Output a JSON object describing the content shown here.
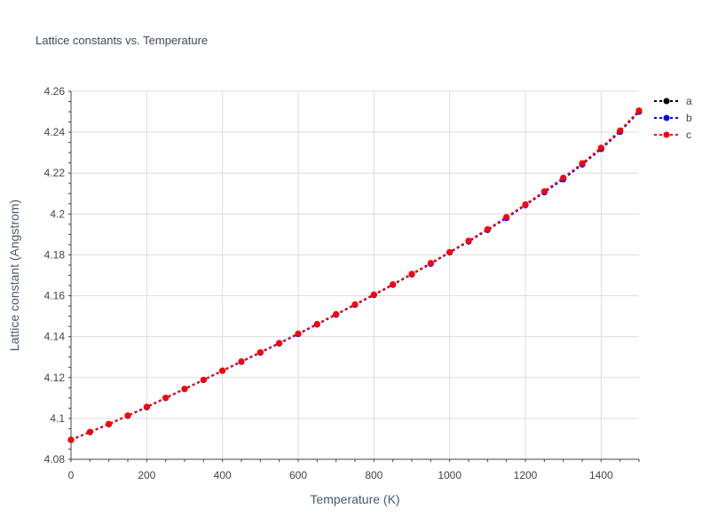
{
  "chart_data": {
    "type": "line",
    "title": "Lattice constants vs. Temperature",
    "xlabel": "Temperature (K)",
    "ylabel": "Lattice constant (Angstrom)",
    "xlim": [
      0,
      1500
    ],
    "ylim": [
      4.08,
      4.26
    ],
    "x_ticks": [
      "0",
      "200",
      "400",
      "600",
      "800",
      "1000",
      "1200",
      "1400"
    ],
    "y_ticks": [
      "4.08",
      "4.1",
      "4.12",
      "4.14",
      "4.16",
      "4.18",
      "4.2",
      "4.22",
      "4.24",
      "4.26"
    ],
    "grid": true,
    "legend_position": "right",
    "x": [
      0,
      50,
      100,
      150,
      200,
      250,
      300,
      350,
      400,
      450,
      500,
      550,
      600,
      650,
      700,
      750,
      800,
      850,
      900,
      950,
      1000,
      1050,
      1100,
      1150,
      1200,
      1250,
      1300,
      1350,
      1400,
      1450,
      1500
    ],
    "series": [
      {
        "name": "a",
        "color": "#000000",
        "values": [
          4.0895,
          4.0933,
          4.0972,
          4.1013,
          4.1055,
          4.11,
          4.1144,
          4.1188,
          4.1233,
          4.1277,
          4.1322,
          4.1367,
          4.1413,
          4.146,
          4.1508,
          4.1556,
          4.1604,
          4.1654,
          4.1705,
          4.1757,
          4.1812,
          4.1866,
          4.1922,
          4.1982,
          4.2045,
          4.2108,
          4.2173,
          4.2244,
          4.232,
          4.2404,
          4.2502
        ]
      },
      {
        "name": "b",
        "color": "#0000ff",
        "values": [
          4.0895,
          4.0933,
          4.0972,
          4.1013,
          4.1055,
          4.11,
          4.1144,
          4.1188,
          4.1233,
          4.1277,
          4.1322,
          4.1367,
          4.1413,
          4.146,
          4.1508,
          4.1556,
          4.1604,
          4.1654,
          4.1705,
          4.1757,
          4.1812,
          4.1866,
          4.1922,
          4.198,
          4.2043,
          4.2106,
          4.217,
          4.2242,
          4.2318,
          4.2402,
          4.25
        ]
      },
      {
        "name": "c",
        "color": "#ff0000",
        "values": [
          4.0895,
          4.0934,
          4.0973,
          4.1014,
          4.1057,
          4.1101,
          4.1145,
          4.1189,
          4.1234,
          4.1279,
          4.1324,
          4.1369,
          4.1415,
          4.1462,
          4.151,
          4.1558,
          4.1606,
          4.1656,
          4.1707,
          4.176,
          4.1814,
          4.1869,
          4.1925,
          4.1985,
          4.2047,
          4.2111,
          4.2177,
          4.2248,
          4.2324,
          4.2408,
          4.2506
        ]
      }
    ]
  }
}
